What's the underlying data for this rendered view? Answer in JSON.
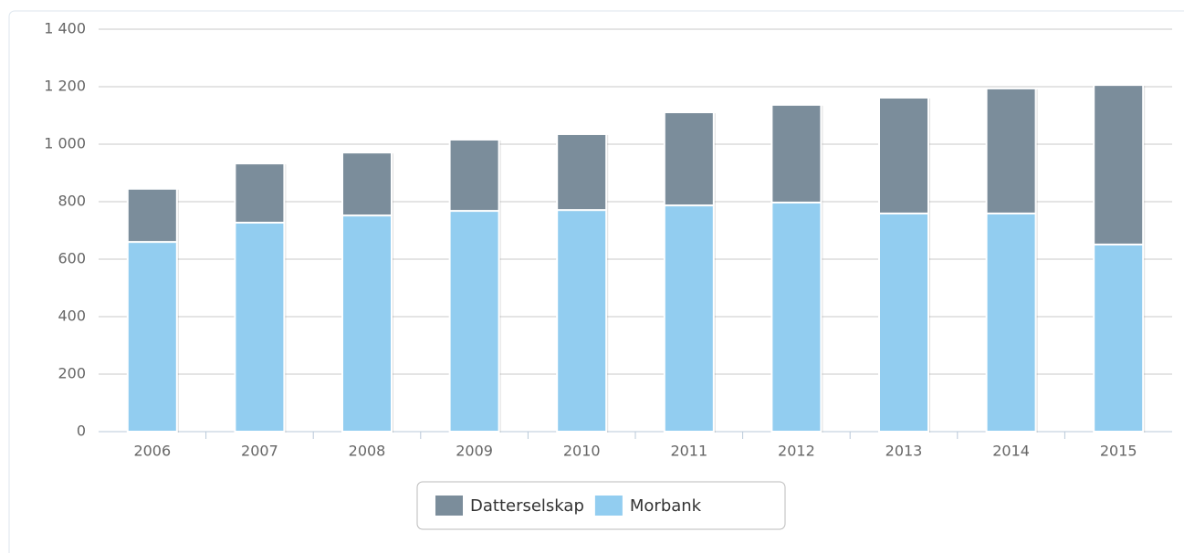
{
  "chart_data": {
    "type": "bar",
    "stacked": true,
    "categories": [
      "2006",
      "2007",
      "2008",
      "2009",
      "2010",
      "2011",
      "2012",
      "2013",
      "2014",
      "2015"
    ],
    "series": [
      {
        "name": "Datterselskap",
        "color": "#7b8d9b",
        "values": [
          185,
          206,
          219,
          248,
          264,
          324,
          340,
          403,
          435,
          555
        ]
      },
      {
        "name": "Morbank",
        "color": "#92cdf0",
        "values": [
          660,
          727,
          752,
          768,
          771,
          787,
          797,
          759,
          759,
          651
        ]
      }
    ],
    "ylim": [
      0,
      1400
    ],
    "yticks": [
      0,
      200,
      400,
      600,
      800,
      {
        "value": 1000,
        "label": "1 000"
      },
      {
        "value": 1200,
        "label": "1 200"
      },
      {
        "value": 1400,
        "label": "1 400"
      }
    ],
    "grid": true,
    "legend": "bottom"
  }
}
